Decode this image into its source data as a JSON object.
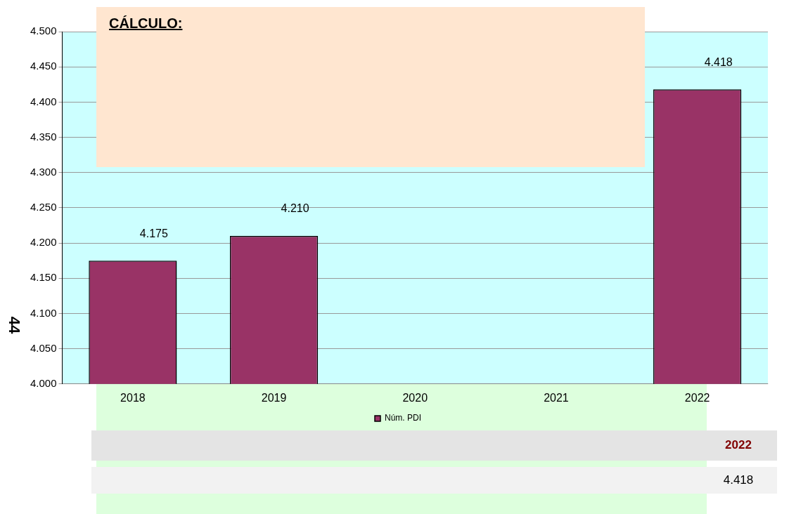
{
  "chart_data": {
    "type": "bar",
    "title": "CÁLCULO:",
    "categories": [
      "2018",
      "2019",
      "2020",
      "2021",
      "2022"
    ],
    "series": [
      {
        "name": "Núm. PDI",
        "color": "#993366",
        "values": [
          4.175,
          4.21,
          null,
          null,
          4.418
        ],
        "value_labels": [
          "4.175",
          "4.210",
          null,
          null,
          "4.418"
        ]
      }
    ],
    "ylim": [
      4.0,
      4.5
    ],
    "yticks": [
      {
        "value": 4.0,
        "label": "4.000"
      },
      {
        "value": 4.05,
        "label": "4.050"
      },
      {
        "value": 4.1,
        "label": "4.100"
      },
      {
        "value": 4.15,
        "label": "4.150"
      },
      {
        "value": 4.2,
        "label": "4.200"
      },
      {
        "value": 4.25,
        "label": "4.250"
      },
      {
        "value": 4.3,
        "label": "4.300"
      },
      {
        "value": 4.35,
        "label": "4.350"
      },
      {
        "value": 4.4,
        "label": "4.400"
      },
      {
        "value": 4.45,
        "label": "4.450"
      },
      {
        "value": 4.5,
        "label": "4.500"
      }
    ],
    "grid": "y",
    "legend": "bottom",
    "annotations": [
      "44",
      "2022",
      "4.418"
    ]
  }
}
